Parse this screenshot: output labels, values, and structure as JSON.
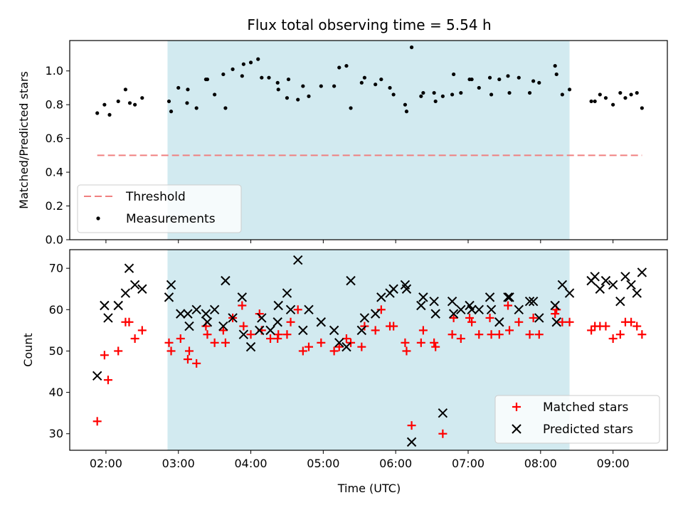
{
  "chart_data": [
    {
      "type": "scatter",
      "title": "Flux total observing time = 5.54 h",
      "xlabel": "",
      "ylabel": "Matched/Predicted stars",
      "ylim": [
        0,
        1.18
      ],
      "yticks": [
        "0.0",
        "0.2",
        "0.4",
        "0.6",
        "0.8",
        "1.0"
      ],
      "xticks": [
        "02:00",
        "03:00",
        "04:00",
        "05:00",
        "06:00",
        "07:00",
        "08:00",
        "09:00"
      ],
      "shaded_span_hours": [
        2.85,
        8.4
      ],
      "shaded_color": "#d2eaf0",
      "legend_position": "lower-left",
      "threshold": {
        "name": "Threshold",
        "value": 0.5,
        "x_range_hours": [
          1.88,
          9.4
        ],
        "color": "#f08080"
      },
      "series": [
        {
          "name": "Measurements",
          "color": "#000000",
          "points": [
            [
              1.88,
              0.75
            ],
            [
              1.98,
              0.8
            ],
            [
              2.05,
              0.74
            ],
            [
              2.17,
              0.82
            ],
            [
              2.27,
              0.89
            ],
            [
              2.33,
              0.81
            ],
            [
              2.4,
              0.8
            ],
            [
              2.5,
              0.84
            ],
            [
              2.87,
              0.82
            ],
            [
              2.9,
              0.76
            ],
            [
              3.0,
              0.9
            ],
            [
              3.13,
              0.89
            ],
            [
              3.12,
              0.81
            ],
            [
              3.25,
              0.78
            ],
            [
              3.38,
              0.95
            ],
            [
              3.4,
              0.95
            ],
            [
              3.5,
              0.86
            ],
            [
              3.62,
              0.98
            ],
            [
              3.65,
              0.78
            ],
            [
              3.75,
              1.01
            ],
            [
              3.88,
              0.97
            ],
            [
              3.9,
              1.04
            ],
            [
              4.0,
              1.05
            ],
            [
              4.1,
              1.07
            ],
            [
              4.15,
              0.96
            ],
            [
              4.25,
              0.96
            ],
            [
              4.37,
              0.93
            ],
            [
              4.38,
              0.89
            ],
            [
              4.5,
              0.84
            ],
            [
              4.52,
              0.95
            ],
            [
              4.65,
              0.83
            ],
            [
              4.72,
              0.91
            ],
            [
              4.8,
              0.85
            ],
            [
              4.97,
              0.91
            ],
            [
              5.15,
              0.91
            ],
            [
              5.22,
              1.02
            ],
            [
              5.32,
              1.03
            ],
            [
              5.38,
              0.78
            ],
            [
              5.53,
              0.93
            ],
            [
              5.57,
              0.96
            ],
            [
              5.72,
              0.92
            ],
            [
              5.8,
              0.95
            ],
            [
              5.92,
              0.9
            ],
            [
              5.97,
              0.86
            ],
            [
              6.13,
              0.8
            ],
            [
              6.15,
              0.76
            ],
            [
              6.22,
              1.14
            ],
            [
              6.35,
              0.85
            ],
            [
              6.38,
              0.87
            ],
            [
              6.53,
              0.87
            ],
            [
              6.55,
              0.82
            ],
            [
              6.65,
              0.85
            ],
            [
              6.78,
              0.86
            ],
            [
              6.8,
              0.98
            ],
            [
              6.9,
              0.87
            ],
            [
              7.02,
              0.95
            ],
            [
              7.05,
              0.95
            ],
            [
              7.15,
              0.9
            ],
            [
              7.3,
              0.96
            ],
            [
              7.32,
              0.86
            ],
            [
              7.43,
              0.95
            ],
            [
              7.55,
              0.97
            ],
            [
              7.57,
              0.87
            ],
            [
              7.7,
              0.96
            ],
            [
              7.85,
              0.87
            ],
            [
              7.9,
              0.94
            ],
            [
              7.98,
              0.93
            ],
            [
              8.2,
              1.03
            ],
            [
              8.22,
              0.98
            ],
            [
              8.3,
              0.86
            ],
            [
              8.4,
              0.89
            ],
            [
              8.7,
              0.82
            ],
            [
              8.75,
              0.82
            ],
            [
              8.82,
              0.86
            ],
            [
              8.9,
              0.84
            ],
            [
              9.0,
              0.8
            ],
            [
              9.1,
              0.87
            ],
            [
              9.17,
              0.84
            ],
            [
              9.25,
              0.86
            ],
            [
              9.33,
              0.87
            ],
            [
              9.4,
              0.78
            ]
          ]
        }
      ]
    },
    {
      "type": "scatter",
      "title": "",
      "xlabel": "Time (UTC)",
      "ylabel": "Count",
      "ylim": [
        26,
        74.5
      ],
      "yticks": [
        "30",
        "40",
        "50",
        "60",
        "70"
      ],
      "xticks": [
        "02:00",
        "03:00",
        "04:00",
        "05:00",
        "06:00",
        "07:00",
        "08:00",
        "09:00"
      ],
      "shaded_span_hours": [
        2.85,
        8.4
      ],
      "legend_position": "lower-right",
      "series": [
        {
          "name": "Matched stars",
          "color": "#ff0000",
          "marker": "plus",
          "points": [
            [
              1.88,
              33
            ],
            [
              1.98,
              49
            ],
            [
              2.03,
              43
            ],
            [
              2.17,
              50
            ],
            [
              2.27,
              57
            ],
            [
              2.32,
              57
            ],
            [
              2.4,
              53
            ],
            [
              2.5,
              55
            ],
            [
              2.87,
              52
            ],
            [
              2.9,
              50
            ],
            [
              3.03,
              53
            ],
            [
              3.13,
              48
            ],
            [
              3.15,
              50
            ],
            [
              3.25,
              47
            ],
            [
              3.38,
              56
            ],
            [
              3.4,
              54
            ],
            [
              3.5,
              52
            ],
            [
              3.62,
              55
            ],
            [
              3.65,
              52
            ],
            [
              3.75,
              58
            ],
            [
              3.88,
              61
            ],
            [
              3.9,
              56
            ],
            [
              4.0,
              54
            ],
            [
              4.12,
              59
            ],
            [
              4.15,
              55
            ],
            [
              4.27,
              53
            ],
            [
              4.37,
              53
            ],
            [
              4.38,
              54
            ],
            [
              4.5,
              54
            ],
            [
              4.55,
              57
            ],
            [
              4.65,
              60
            ],
            [
              4.72,
              50
            ],
            [
              4.8,
              51
            ],
            [
              4.97,
              52
            ],
            [
              5.15,
              50
            ],
            [
              5.22,
              51
            ],
            [
              5.32,
              53
            ],
            [
              5.38,
              52
            ],
            [
              5.53,
              51
            ],
            [
              5.57,
              56
            ],
            [
              5.72,
              55
            ],
            [
              5.8,
              60
            ],
            [
              5.92,
              56
            ],
            [
              5.97,
              56
            ],
            [
              6.13,
              52
            ],
            [
              6.15,
              50
            ],
            [
              6.22,
              32
            ],
            [
              6.35,
              52
            ],
            [
              6.38,
              55
            ],
            [
              6.53,
              52
            ],
            [
              6.55,
              51
            ],
            [
              6.65,
              30
            ],
            [
              6.78,
              54
            ],
            [
              6.8,
              58
            ],
            [
              6.9,
              53
            ],
            [
              7.02,
              58
            ],
            [
              7.05,
              57
            ],
            [
              7.15,
              54
            ],
            [
              7.3,
              58
            ],
            [
              7.32,
              54
            ],
            [
              7.43,
              54
            ],
            [
              7.55,
              61
            ],
            [
              7.57,
              55
            ],
            [
              7.7,
              57
            ],
            [
              7.85,
              54
            ],
            [
              7.9,
              58
            ],
            [
              7.98,
              54
            ],
            [
              8.2,
              59
            ],
            [
              8.22,
              60
            ],
            [
              8.3,
              57
            ],
            [
              8.4,
              57
            ],
            [
              8.7,
              55
            ],
            [
              8.75,
              56
            ],
            [
              8.82,
              56
            ],
            [
              8.9,
              56
            ],
            [
              9.0,
              53
            ],
            [
              9.1,
              54
            ],
            [
              9.17,
              57
            ],
            [
              9.25,
              57
            ],
            [
              9.33,
              56
            ],
            [
              9.4,
              54
            ]
          ]
        },
        {
          "name": "Predicted stars",
          "color": "#000000",
          "marker": "x",
          "points": [
            [
              1.88,
              44
            ],
            [
              1.98,
              61
            ],
            [
              2.03,
              58
            ],
            [
              2.17,
              61
            ],
            [
              2.27,
              64
            ],
            [
              2.32,
              70
            ],
            [
              2.4,
              66
            ],
            [
              2.5,
              65
            ],
            [
              2.87,
              63
            ],
            [
              2.9,
              66
            ],
            [
              3.03,
              59
            ],
            [
              3.13,
              59
            ],
            [
              3.15,
              56
            ],
            [
              3.25,
              60
            ],
            [
              3.38,
              59
            ],
            [
              3.4,
              57
            ],
            [
              3.5,
              60
            ],
            [
              3.62,
              56
            ],
            [
              3.65,
              67
            ],
            [
              3.75,
              58
            ],
            [
              3.88,
              63
            ],
            [
              3.9,
              54
            ],
            [
              4.0,
              51
            ],
            [
              4.12,
              55
            ],
            [
              4.15,
              58
            ],
            [
              4.27,
              55
            ],
            [
              4.37,
              57
            ],
            [
              4.38,
              61
            ],
            [
              4.5,
              64
            ],
            [
              4.55,
              60
            ],
            [
              4.65,
              72
            ],
            [
              4.72,
              55
            ],
            [
              4.8,
              60
            ],
            [
              4.97,
              57
            ],
            [
              5.15,
              55
            ],
            [
              5.22,
              52
            ],
            [
              5.32,
              51
            ],
            [
              5.38,
              67
            ],
            [
              5.53,
              55
            ],
            [
              5.57,
              58
            ],
            [
              5.72,
              59
            ],
            [
              5.8,
              63
            ],
            [
              5.92,
              64
            ],
            [
              5.97,
              65
            ],
            [
              6.13,
              66
            ],
            [
              6.15,
              65
            ],
            [
              6.22,
              28
            ],
            [
              6.35,
              61
            ],
            [
              6.38,
              63
            ],
            [
              6.53,
              62
            ],
            [
              6.55,
              59
            ],
            [
              6.65,
              35
            ],
            [
              6.78,
              62
            ],
            [
              6.8,
              59
            ],
            [
              6.9,
              60
            ],
            [
              7.02,
              61
            ],
            [
              7.05,
              60
            ],
            [
              7.15,
              60
            ],
            [
              7.3,
              63
            ],
            [
              7.32,
              60
            ],
            [
              7.43,
              57
            ],
            [
              7.55,
              63
            ],
            [
              7.57,
              63
            ],
            [
              7.7,
              60
            ],
            [
              7.85,
              62
            ],
            [
              7.9,
              62
            ],
            [
              7.98,
              58
            ],
            [
              8.2,
              61
            ],
            [
              8.22,
              57
            ],
            [
              8.3,
              66
            ],
            [
              8.4,
              64
            ],
            [
              8.7,
              67
            ],
            [
              8.75,
              68
            ],
            [
              8.82,
              65
            ],
            [
              8.9,
              67
            ],
            [
              9.0,
              66
            ],
            [
              9.1,
              62
            ],
            [
              9.17,
              68
            ],
            [
              9.25,
              66
            ],
            [
              9.33,
              64
            ],
            [
              9.4,
              69
            ]
          ]
        }
      ]
    }
  ]
}
